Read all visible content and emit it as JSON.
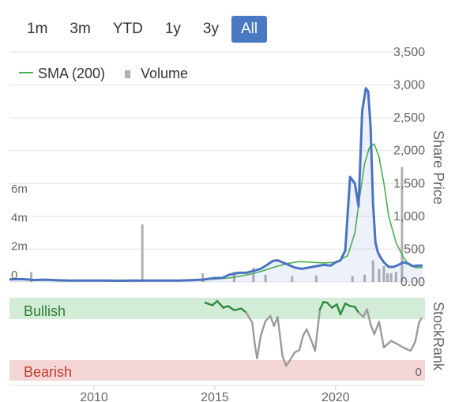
{
  "range_buttons": [
    {
      "label": "1m",
      "active": false
    },
    {
      "label": "3m",
      "active": false
    },
    {
      "label": "YTD",
      "active": false
    },
    {
      "label": "1y",
      "active": false
    },
    {
      "label": "3y",
      "active": false
    },
    {
      "label": "All",
      "active": true
    }
  ],
  "colors": {
    "price": "#4a72c0",
    "sma": "#4caf50",
    "volume": "#b0b0b0",
    "bullish_band": "#d3ecd8",
    "bearish_band": "#f4d6d6",
    "rank_bull": "#2e8b3c",
    "rank_neutral": "#9b9b9b",
    "bullish_text": "#2e7d32",
    "bearish_text": "#c0392b"
  },
  "chart_data": {
    "type": "line",
    "legend": {
      "placement": "top-left",
      "items": [
        "SMA (200)",
        "Volume"
      ]
    },
    "x_ticks": [
      "2010",
      "2015",
      "2020"
    ],
    "xlim": [
      2006.5,
      2023.7
    ],
    "price_axis": {
      "label": "Share Price",
      "ticks": [
        "0.00",
        "500",
        "1,000",
        "1,500",
        "2,000",
        "2,500",
        "3,000",
        "3,500"
      ],
      "ylim": [
        0,
        3500
      ]
    },
    "volume_axis": {
      "ticks": [
        "0",
        "2m",
        "4m",
        "6m"
      ],
      "ylim": [
        0,
        16000000
      ]
    },
    "series": [
      {
        "name": "Share Price",
        "x": [
          2006.5,
          2007.0,
          2007.5,
          2008.0,
          2008.5,
          2009.0,
          2009.5,
          2010.0,
          2010.5,
          2011.0,
          2011.5,
          2012.0,
          2012.5,
          2013.0,
          2013.5,
          2014.0,
          2014.5,
          2015.0,
          2015.3,
          2015.6,
          2016.0,
          2016.3,
          2016.6,
          2016.9,
          2017.2,
          2017.4,
          2017.6,
          2017.8,
          2018.0,
          2018.3,
          2018.6,
          2018.9,
          2019.2,
          2019.5,
          2019.8,
          2020.0,
          2020.2,
          2020.4,
          2020.6,
          2020.8,
          2020.95,
          2021.1,
          2021.25,
          2021.35,
          2021.45,
          2021.55,
          2021.65,
          2021.75,
          2021.85,
          2022.0,
          2022.2,
          2022.4,
          2022.6,
          2022.8,
          2023.0,
          2023.2,
          2023.4,
          2023.6
        ],
        "values": [
          40,
          45,
          30,
          35,
          25,
          20,
          22,
          20,
          20,
          18,
          20,
          20,
          22,
          20,
          22,
          28,
          35,
          60,
          60,
          110,
          140,
          140,
          170,
          200,
          270,
          320,
          330,
          300,
          270,
          220,
          200,
          220,
          240,
          260,
          250,
          300,
          330,
          480,
          1600,
          1500,
          1150,
          2600,
          2950,
          2900,
          2350,
          1200,
          600,
          450,
          380,
          300,
          230,
          230,
          260,
          300,
          280,
          240,
          250,
          250
        ]
      },
      {
        "name": "SMA (200)",
        "x": [
          2006.5,
          2008.0,
          2010.0,
          2012.0,
          2014.0,
          2015.0,
          2015.6,
          2016.0,
          2016.5,
          2017.0,
          2017.5,
          2018.0,
          2018.5,
          2019.0,
          2019.5,
          2020.0,
          2020.5,
          2020.8,
          2021.0,
          2021.2,
          2021.4,
          2021.6,
          2021.8,
          2022.0,
          2022.2,
          2022.5,
          2022.8,
          2023.0,
          2023.3,
          2023.6
        ],
        "values": [
          35,
          30,
          20,
          20,
          25,
          45,
          60,
          85,
          120,
          170,
          230,
          280,
          310,
          300,
          290,
          300,
          400,
          750,
          1300,
          1800,
          2050,
          2100,
          1900,
          1500,
          1000,
          600,
          380,
          280,
          220,
          220
        ]
      },
      {
        "name": "Volume",
        "x": [
          2007.4,
          2012.0,
          2014.5,
          2015.8,
          2016.6,
          2017.1,
          2018.2,
          2019.2,
          2020.7,
          2021.2,
          2021.55,
          2021.8,
          2022.0,
          2022.15,
          2022.3,
          2022.5,
          2022.75
        ],
        "values": [
          700000,
          4000000,
          600000,
          700000,
          1000000,
          500000,
          400000,
          450000,
          400000,
          500000,
          1500000,
          900000,
          1100000,
          600000,
          600000,
          700000,
          8000000
        ]
      },
      {
        "name": "StockRank",
        "x": [
          2014.6,
          2014.9,
          2015.1,
          2015.35,
          2015.55,
          2015.8,
          2016.1,
          2016.3,
          2016.55,
          2016.65,
          2016.75,
          2016.9,
          2017.1,
          2017.3,
          2017.45,
          2017.6,
          2017.8,
          2017.95,
          2018.1,
          2018.3,
          2018.5,
          2018.65,
          2018.8,
          2019.0,
          2019.15,
          2019.35,
          2019.5,
          2019.65,
          2019.85,
          2020.05,
          2020.2,
          2020.4,
          2020.6,
          2020.8,
          2020.95,
          2021.15,
          2021.3,
          2021.45,
          2021.6,
          2021.8,
          2022.0,
          2022.3,
          2022.5,
          2022.8,
          2023.1,
          2023.3,
          2023.45,
          2023.55
        ],
        "values": [
          94,
          91,
          96,
          88,
          90,
          85,
          87,
          82,
          70,
          45,
          27,
          54,
          72,
          78,
          66,
          77,
          30,
          18,
          24,
          34,
          37,
          54,
          62,
          48,
          36,
          86,
          95,
          94,
          88,
          92,
          80,
          93,
          90,
          89,
          82,
          77,
          86,
          68,
          56,
          71,
          40,
          48,
          45,
          40,
          36,
          47,
          70,
          75
        ]
      }
    ],
    "rank_axis": {
      "label": "StockRank",
      "bullish_label": "Bullish",
      "bearish_label": "Bearish",
      "tick": "0",
      "ylim": [
        0,
        100
      ]
    }
  }
}
